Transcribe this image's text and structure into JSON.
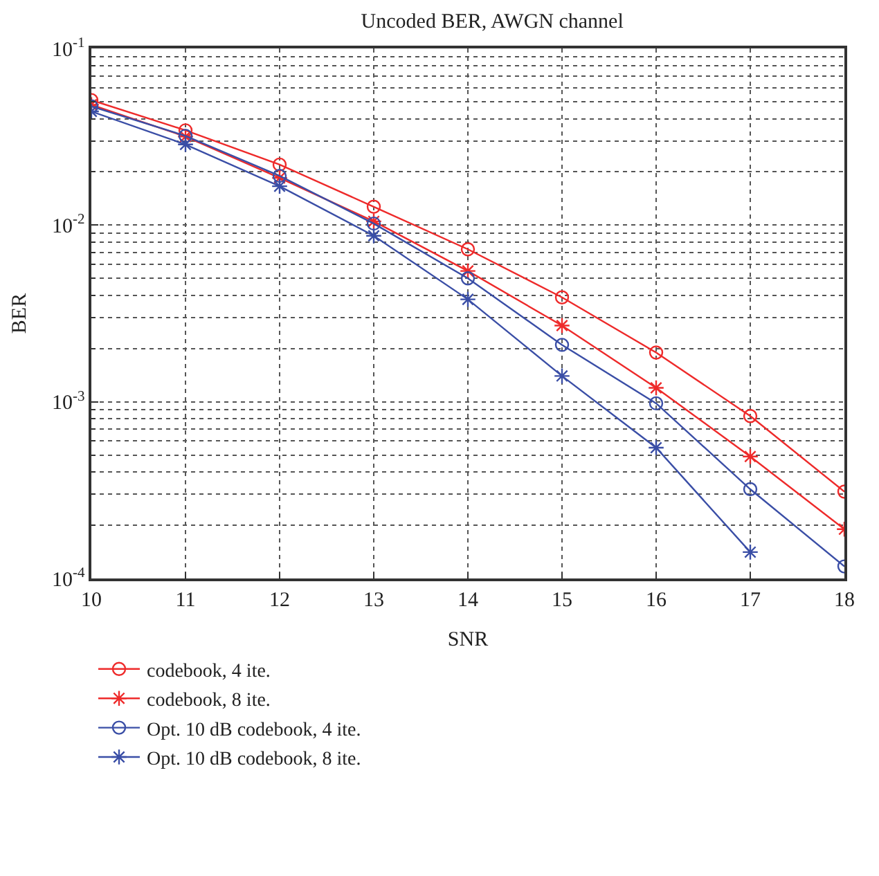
{
  "chart_data": {
    "type": "line",
    "title": "Uncoded BER, AWGN channel",
    "xlabel": "SNR",
    "ylabel": "BER",
    "x": [
      10,
      11,
      12,
      13,
      14,
      15,
      16,
      17,
      18
    ],
    "series": [
      {
        "name": "codebook, 4 ite.",
        "color": "#ee2a2a",
        "marker": "circle",
        "values": [
          0.051,
          0.0344,
          0.022,
          0.0127,
          0.0073,
          0.0039,
          0.0019,
          0.00083,
          0.00031
        ]
      },
      {
        "name": "codebook, 8 ite.",
        "color": "#ee2a2a",
        "marker": "cross",
        "values": [
          0.048,
          0.0317,
          0.0185,
          0.0105,
          0.0055,
          0.0027,
          0.0012,
          0.00049,
          0.00019
        ]
      },
      {
        "name": "Opt. 10 dB codebook, 4 ite.",
        "color": "#3a4ea6",
        "marker": "circle",
        "values": [
          0.047,
          0.032,
          0.019,
          0.0102,
          0.005,
          0.0021,
          0.00098,
          0.00032,
          0.000117
        ]
      },
      {
        "name": "Opt. 10 dB codebook, 8 ite.",
        "color": "#3a4ea6",
        "marker": "cross",
        "values": [
          0.044,
          0.0286,
          0.0166,
          0.0087,
          0.0038,
          0.0014,
          0.00055,
          0.000141,
          null
        ]
      }
    ],
    "log": "y",
    "xlim": [
      10,
      18
    ],
    "xticks": [
      10,
      11,
      12,
      13,
      14,
      15,
      16,
      17,
      18
    ],
    "ylim": [
      0.0001,
      0.1
    ],
    "yticks": [
      {
        "value": 0.1,
        "label": "10$^{-1}$"
      },
      {
        "value": 0.01,
        "label": "10$^{-2}$"
      },
      {
        "value": 0.001,
        "label": "10$^{-3}$"
      },
      {
        "value": 0.0001,
        "label": "10$^{-4}$"
      }
    ],
    "grid": true,
    "legend": "bottom",
    "line_style": "solid"
  }
}
